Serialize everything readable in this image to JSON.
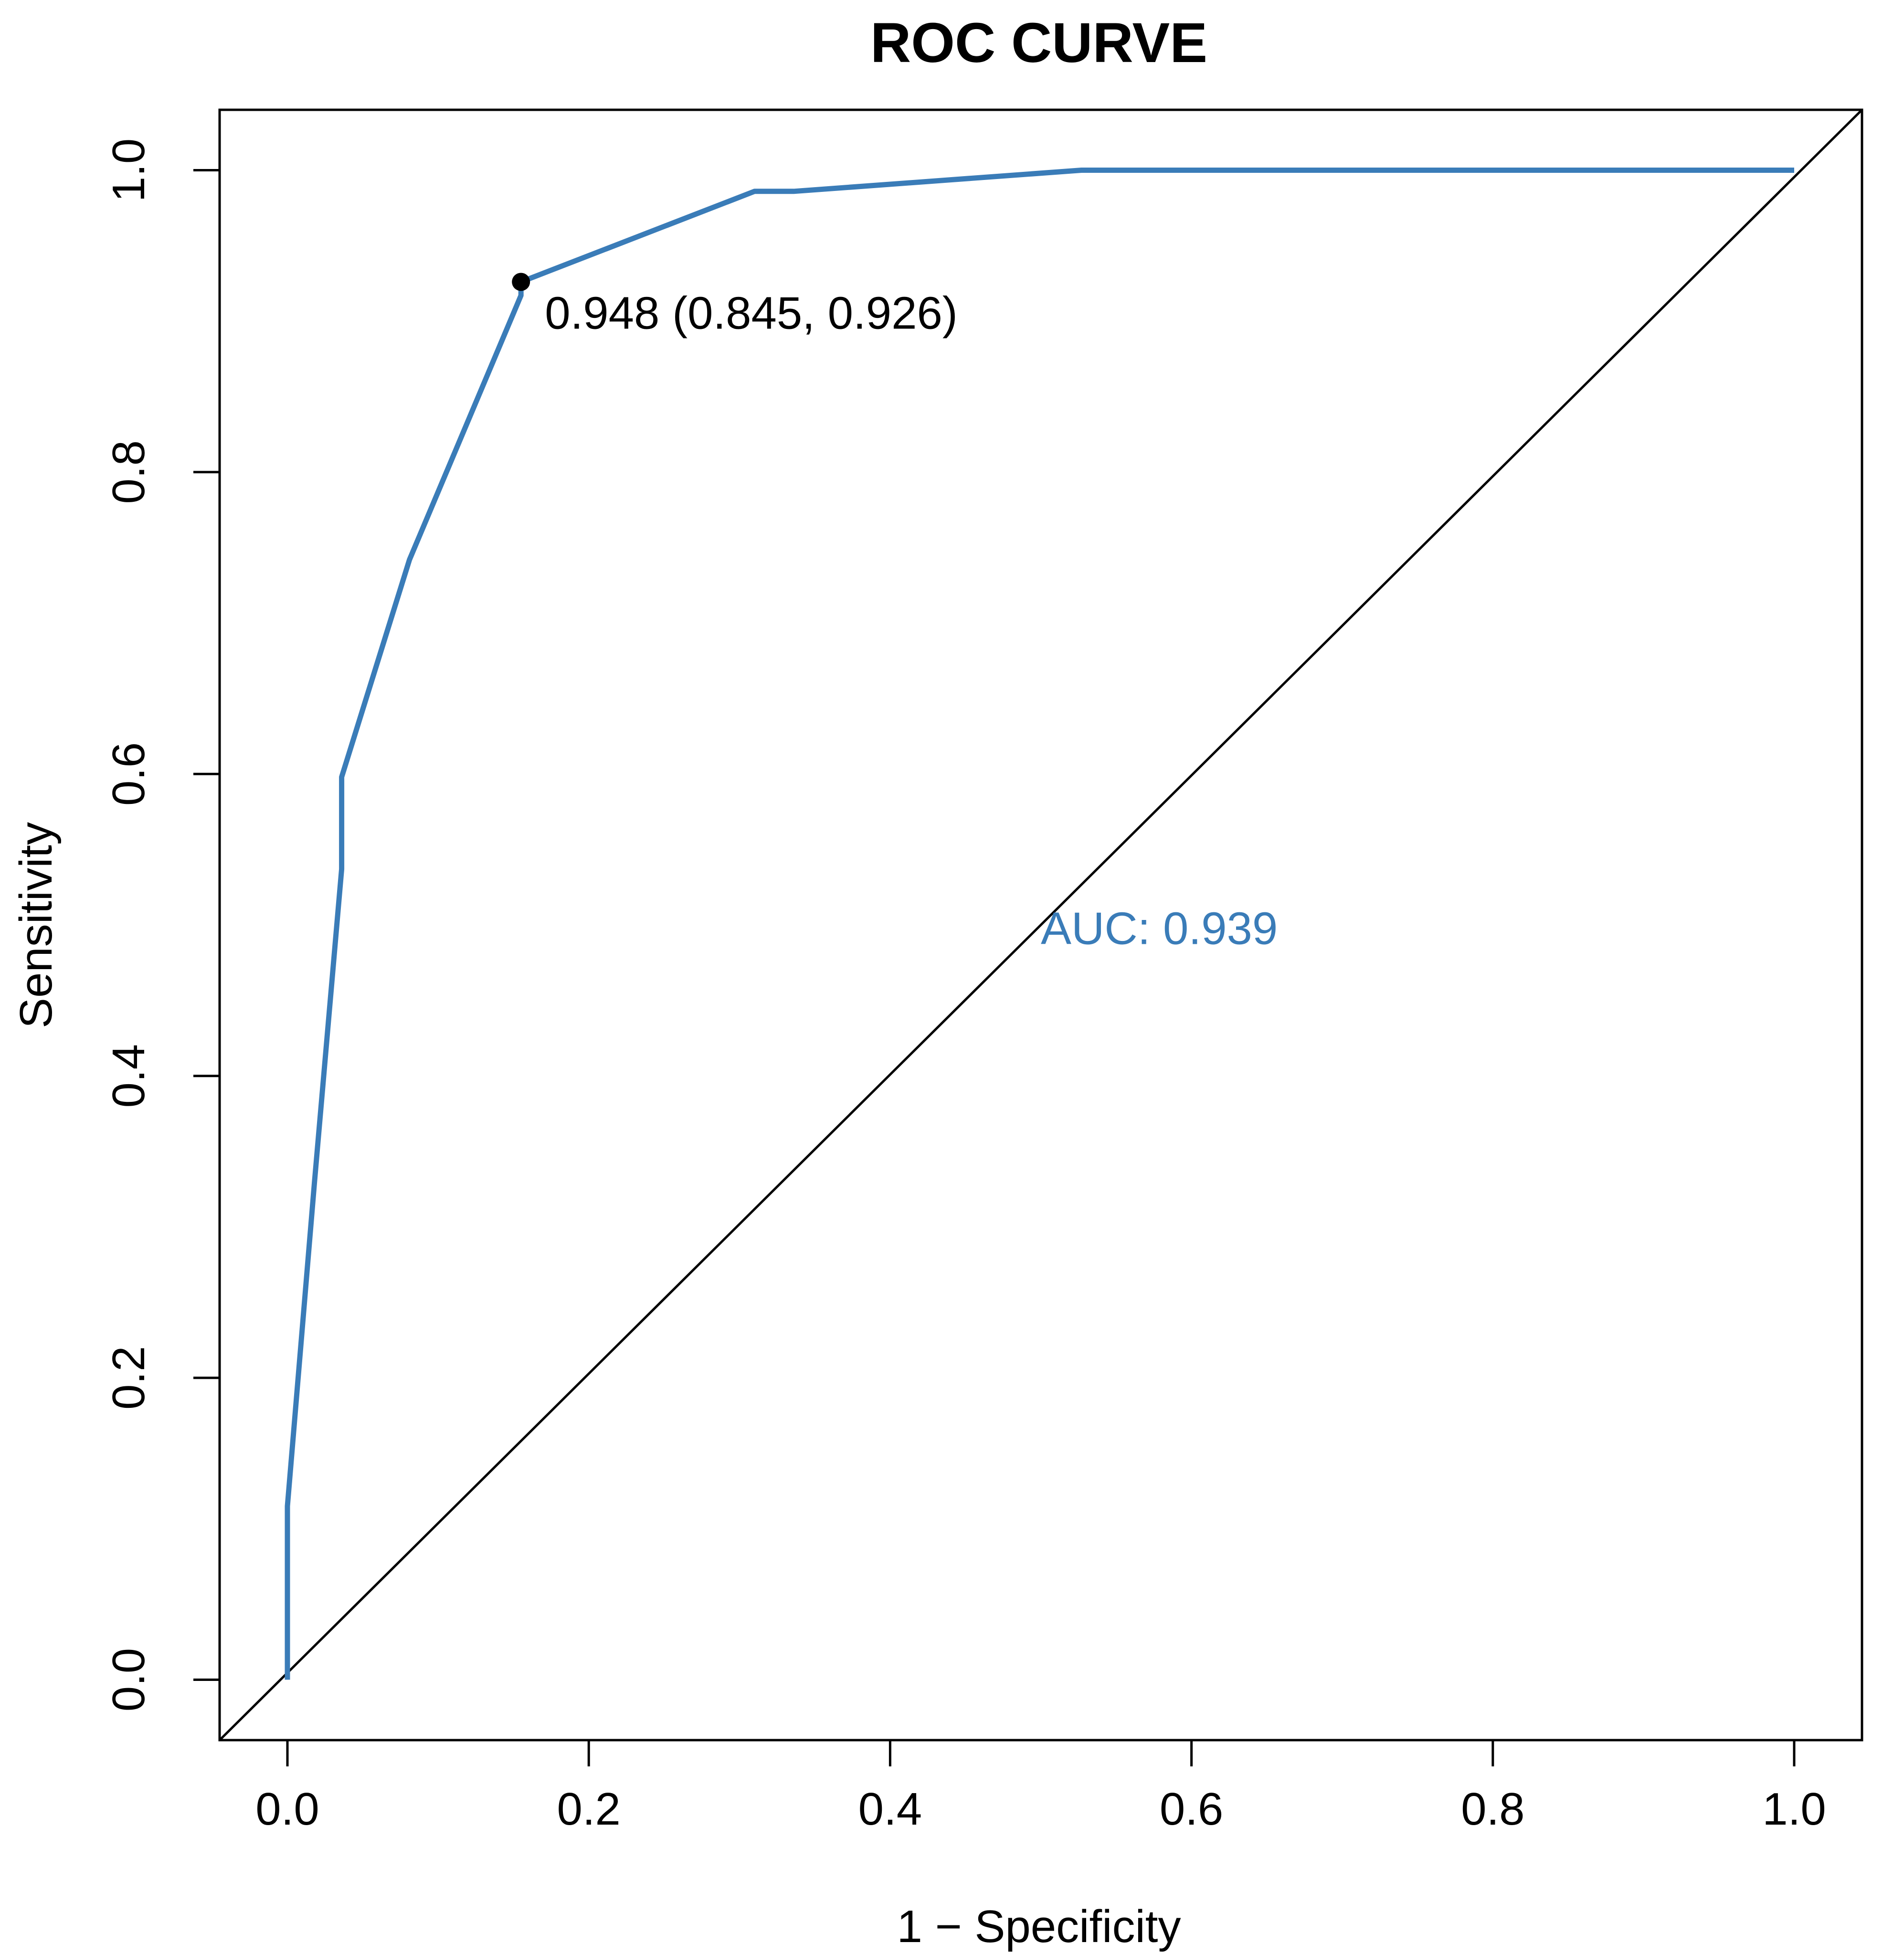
{
  "chart_data": {
    "type": "line",
    "title": "ROC CURVE",
    "xlabel": "1 − Specificity",
    "ylabel": "Sensitivity",
    "xlim": [
      -0.045,
      1.045
    ],
    "ylim": [
      -0.04,
      1.04
    ],
    "x_ticks": [
      "0.0",
      "0.2",
      "0.4",
      "0.6",
      "0.8",
      "1.0"
    ],
    "y_ticks": [
      "0.0",
      "0.2",
      "0.4",
      "0.6",
      "0.8",
      "1.0"
    ],
    "grid": false,
    "legend": "none",
    "colors": {
      "curve": "#3A7CB8",
      "diagonal": "#000000",
      "point": "#000000"
    },
    "series": [
      {
        "x": [
          0.0,
          0.0,
          0.0,
          0.018,
          0.036,
          0.036,
          0.081,
          0.155,
          0.155,
          0.31,
          0.336,
          0.527,
          1.0
        ],
        "y": [
          0.0,
          0.062,
          0.115,
          0.33,
          0.537,
          0.598,
          0.742,
          0.917,
          0.926,
          0.986,
          0.986,
          1.0,
          1.0
        ]
      }
    ],
    "reference_line": {
      "from": [
        -0.045,
        -0.04
      ],
      "to": [
        1.045,
        1.04
      ]
    },
    "best_point": {
      "x": 0.155,
      "y": 0.926,
      "label": "0.948 (0.845, 0.926)"
    },
    "auc_label": "AUC: 0.939"
  }
}
